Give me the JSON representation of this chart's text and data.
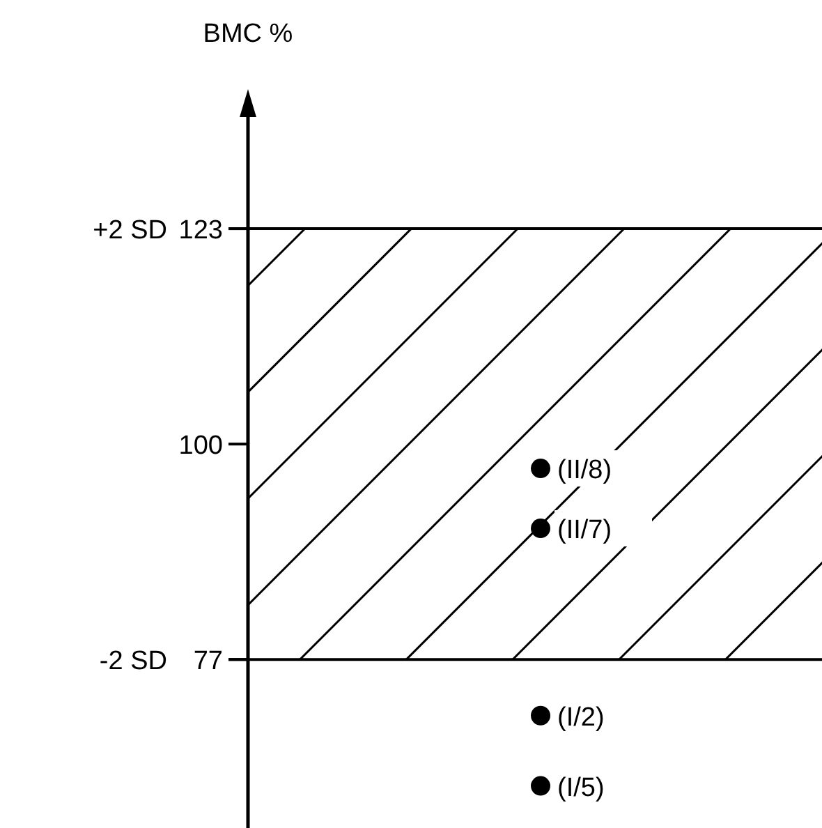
{
  "chart_data": {
    "type": "scatter",
    "ylabel": "BMC %",
    "categories": [
      null
    ],
    "series": [
      {
        "name": "(II/8)",
        "color": "#000000",
        "values": [
          97.4
        ]
      },
      {
        "name": "(II/7)",
        "color": "#000000",
        "values": [
          91
        ]
      },
      {
        "name": "(I/2)",
        "color": "#000000",
        "values": [
          71
        ]
      },
      {
        "name": "(I/5)",
        "color": "#000000",
        "values": [
          63.5
        ]
      }
    ],
    "ylim": [
      59,
      137
    ],
    "yticks": [
      77,
      100,
      123
    ],
    "grid": false,
    "marker": "circle",
    "bands": [
      {
        "axis": "y",
        "from": 77,
        "to": 123,
        "color": "#000000"
      }
    ],
    "ref_lines": [
      {
        "axis": "y",
        "value": 123,
        "label": "+2 SD"
      },
      {
        "axis": "y",
        "value": 77,
        "label": "-2 SD"
      }
    ]
  }
}
